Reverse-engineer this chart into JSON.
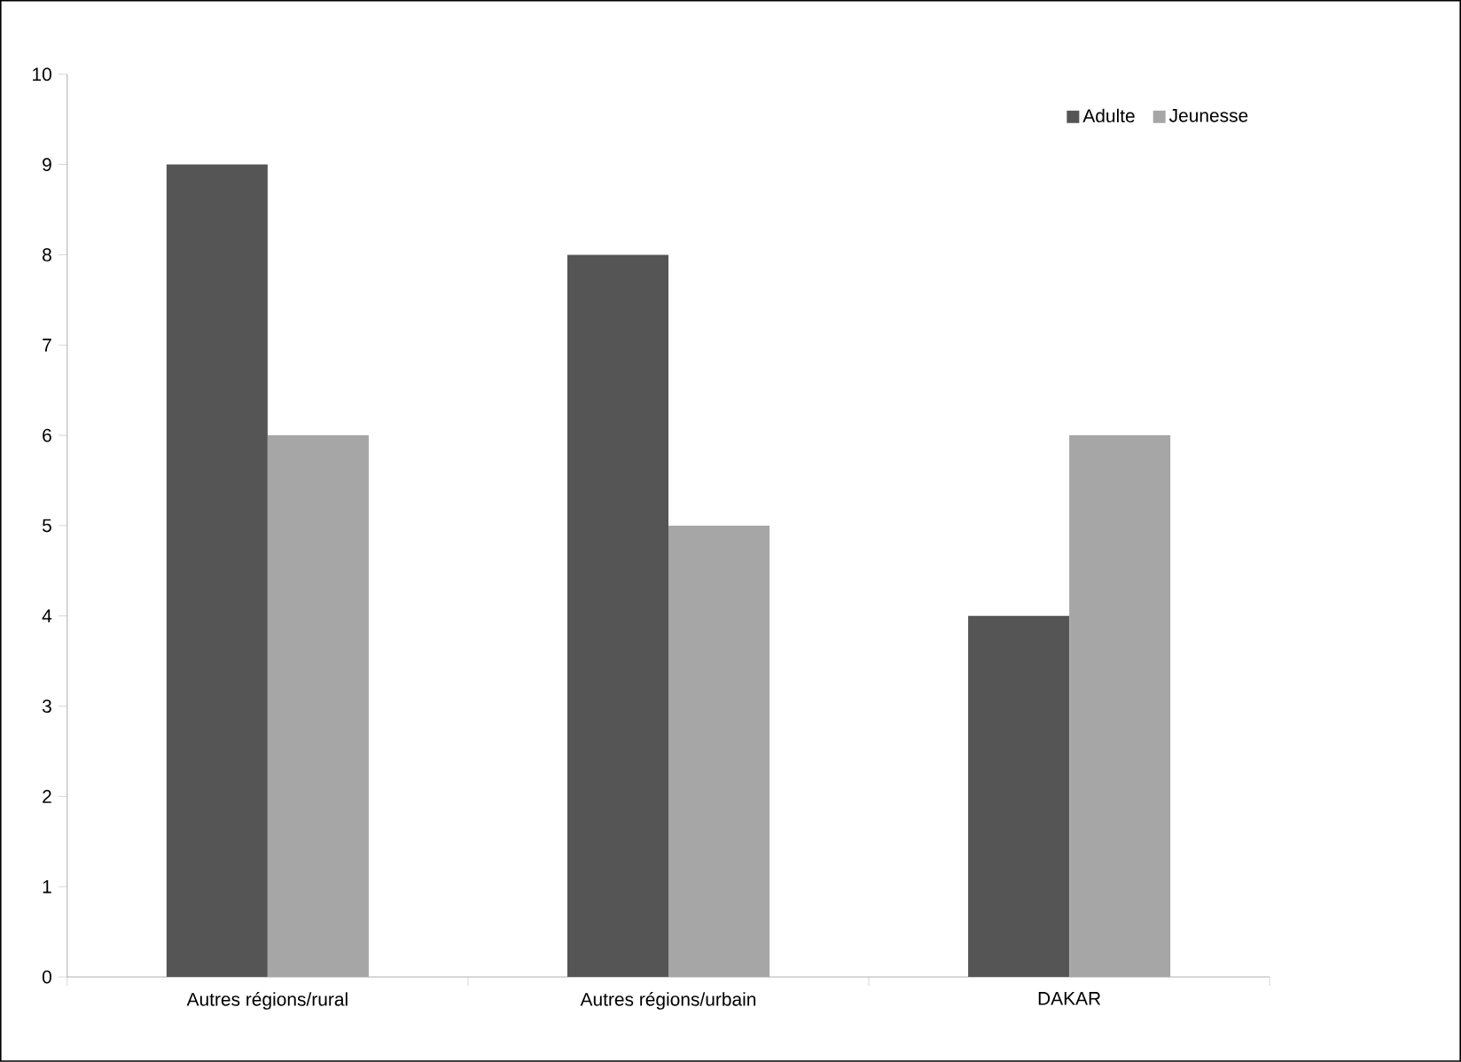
{
  "chart_data": {
    "type": "bar",
    "categories": [
      "Autres régions/rural",
      "Autres régions/urbain",
      "DAKAR"
    ],
    "series": [
      {
        "name": "Adulte",
        "color": "#555555",
        "values": [
          9,
          8,
          4
        ]
      },
      {
        "name": "Jeunesse",
        "color": "#a6a6a6",
        "values": [
          6,
          5,
          6
        ]
      }
    ],
    "ylim": [
      0,
      10
    ],
    "yticks": [
      0,
      1,
      2,
      3,
      4,
      5,
      6,
      7,
      8,
      9,
      10
    ],
    "legend": "top right"
  }
}
